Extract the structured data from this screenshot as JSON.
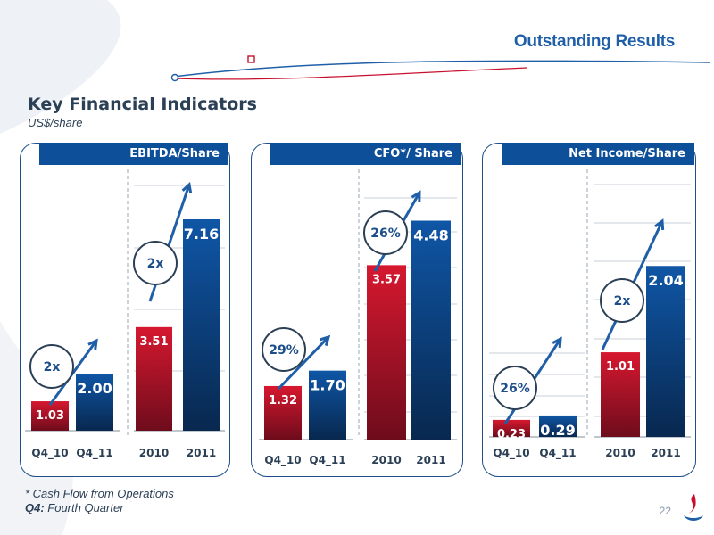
{
  "slide": {
    "title": "Outstanding Results",
    "section_title": "Key Financial Indicators",
    "section_subtitle": "US$/share",
    "page_number": "22",
    "footnotes": [
      {
        "prefix": "* ",
        "text": "Cash Flow from Operations"
      },
      {
        "prefix": "Q4:",
        "text": " Fourth Quarter"
      }
    ]
  },
  "colors": {
    "red_bar": "#c8102e",
    "blue_bar": "#0e4f99",
    "header": "#0e4f99",
    "arrow": "#1f5fa8"
  },
  "chart_data": [
    {
      "type": "bar",
      "title": "EBITDA/Share",
      "groups": [
        {
          "categories": [
            "Q4_10",
            "Q4_11"
          ],
          "values": [
            1.03,
            2.0
          ],
          "labels": [
            "1.03",
            "2.00"
          ],
          "growth": "2x"
        },
        {
          "categories": [
            "2010",
            "2011"
          ],
          "values": [
            3.51,
            7.16
          ],
          "labels": [
            "3.51",
            "7.16"
          ],
          "growth": "2x"
        }
      ]
    },
    {
      "type": "bar",
      "title": "CFO*/ Share",
      "groups": [
        {
          "categories": [
            "Q4_10",
            "Q4_11"
          ],
          "values": [
            1.32,
            1.7
          ],
          "labels": [
            "1.32",
            "1.70"
          ],
          "growth": "29%"
        },
        {
          "categories": [
            "2010",
            "2011"
          ],
          "values": [
            3.57,
            4.48
          ],
          "labels": [
            "3.57",
            "4.48"
          ],
          "growth": "26%"
        }
      ]
    },
    {
      "type": "bar",
      "title": "Net Income/Share",
      "groups": [
        {
          "categories": [
            "Q4_10",
            "Q4_11"
          ],
          "values": [
            0.23,
            0.29
          ],
          "labels": [
            "0.23",
            "0.29"
          ],
          "growth": "26%"
        },
        {
          "categories": [
            "2010",
            "2011"
          ],
          "values": [
            1.01,
            2.04
          ],
          "labels": [
            "1.01",
            "2.04"
          ],
          "growth": "2x"
        }
      ]
    }
  ]
}
